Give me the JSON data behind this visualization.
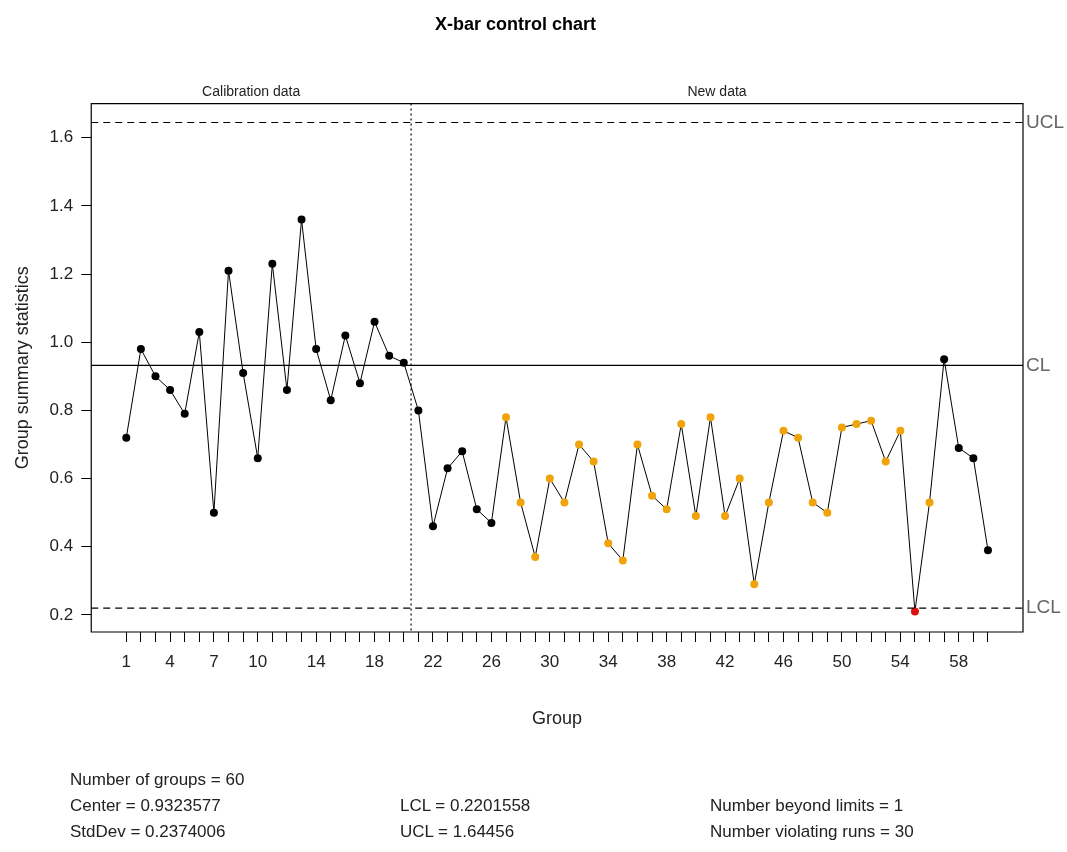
{
  "chart_data": {
    "type": "line",
    "title": "X-bar control chart",
    "xlabel": "Group",
    "ylabel": "Group summary statistics",
    "x": [
      1,
      2,
      3,
      4,
      5,
      6,
      7,
      8,
      9,
      10,
      11,
      12,
      13,
      14,
      15,
      16,
      17,
      18,
      19,
      20,
      21,
      22,
      23,
      24,
      25,
      26,
      27,
      28,
      29,
      30,
      31,
      32,
      33,
      34,
      35,
      36,
      37,
      38,
      39,
      40,
      41,
      42,
      43,
      44,
      45,
      46,
      47,
      48,
      49,
      50,
      51,
      52,
      53,
      54,
      55,
      56,
      57,
      58,
      59,
      60
    ],
    "series": [
      {
        "color": "#000000",
        "values": [
          0.72,
          0.98,
          0.9,
          0.86,
          0.79,
          1.03,
          0.5,
          1.21,
          0.91,
          0.66,
          1.23,
          0.86,
          1.36,
          0.98,
          0.83,
          1.02,
          0.88,
          1.06,
          0.96,
          0.94,
          0.8,
          0.46,
          0.63,
          0.68,
          0.51,
          0.47,
          0.78,
          0.53,
          0.37,
          0.6,
          0.53,
          0.7,
          0.65,
          0.41,
          0.36,
          0.7,
          0.55,
          0.51,
          0.76,
          0.49,
          0.78,
          0.49,
          0.6,
          0.29,
          0.53,
          0.74,
          0.72,
          0.53,
          0.5,
          0.75,
          0.76,
          0.77,
          0.65,
          0.74,
          0.21,
          0.53,
          0.95,
          0.69,
          0.66,
          0.39
        ],
        "colors": [
          "#000000",
          "#000000",
          "#000000",
          "#000000",
          "#000000",
          "#000000",
          "#000000",
          "#000000",
          "#000000",
          "#000000",
          "#000000",
          "#000000",
          "#000000",
          "#000000",
          "#000000",
          "#000000",
          "#000000",
          "#000000",
          "#000000",
          "#000000",
          "#000000",
          "#000000",
          "#000000",
          "#000000",
          "#000000",
          "#000000",
          "#f0a30a",
          "#f0a30a",
          "#f0a30a",
          "#f0a30a",
          "#f0a30a",
          "#f0a30a",
          "#f0a30a",
          "#f0a30a",
          "#f0a30a",
          "#f0a30a",
          "#f0a30a",
          "#f0a30a",
          "#f0a30a",
          "#f0a30a",
          "#f0a30a",
          "#f0a30a",
          "#f0a30a",
          "#f0a30a",
          "#f0a30a",
          "#f0a30a",
          "#f0a30a",
          "#f0a30a",
          "#f0a30a",
          "#f0a30a",
          "#f0a30a",
          "#f0a30a",
          "#f0a30a",
          "#f0a30a",
          "#e01010",
          "#f0a30a",
          "#000000",
          "#000000",
          "#000000",
          "#000000"
        ]
      }
    ],
    "xlim": [
      -1.4,
      62.4
    ],
    "xticks": [
      1,
      {
        "value": 2,
        "label": null
      },
      {
        "value": 3,
        "label": null
      },
      4,
      {
        "value": 5,
        "label": null
      },
      {
        "value": 6,
        "label": null
      },
      7,
      {
        "value": 8,
        "label": null
      },
      {
        "value": 9,
        "label": null
      },
      10,
      {
        "value": 11,
        "label": null
      },
      {
        "value": 12,
        "label": null
      },
      {
        "value": 13,
        "label": null
      },
      14,
      {
        "value": 15,
        "label": null
      },
      {
        "value": 16,
        "label": null
      },
      {
        "value": 17,
        "label": null
      },
      18,
      {
        "value": 19,
        "label": null
      },
      {
        "value": 20,
        "label": null
      },
      {
        "value": 21,
        "label": null
      },
      22,
      {
        "value": 23,
        "label": null
      },
      {
        "value": 24,
        "label": null
      },
      {
        "value": 25,
        "label": null
      },
      26,
      {
        "value": 27,
        "label": null
      },
      {
        "value": 28,
        "label": null
      },
      {
        "value": 29,
        "label": null
      },
      30,
      {
        "value": 31,
        "label": null
      },
      {
        "value": 32,
        "label": null
      },
      {
        "value": 33,
        "label": null
      },
      34,
      {
        "value": 35,
        "label": null
      },
      {
        "value": 36,
        "label": null
      },
      {
        "value": 37,
        "label": null
      },
      38,
      {
        "value": 39,
        "label": null
      },
      {
        "value": 40,
        "label": null
      },
      {
        "value": 41,
        "label": null
      },
      42,
      {
        "value": 43,
        "label": null
      },
      {
        "value": 44,
        "label": null
      },
      {
        "value": 45,
        "label": null
      },
      46,
      {
        "value": 47,
        "label": null
      },
      {
        "value": 48,
        "label": null
      },
      {
        "value": 49,
        "label": null
      },
      50,
      {
        "value": 51,
        "label": null
      },
      {
        "value": 52,
        "label": null
      },
      {
        "value": 53,
        "label": null
      },
      54,
      {
        "value": 55,
        "label": null
      },
      {
        "value": 56,
        "label": null
      },
      {
        "value": 57,
        "label": null
      },
      58,
      {
        "value": 59,
        "label": null
      },
      {
        "value": 60,
        "label": null
      }
    ],
    "ylim": [
      0.15,
      1.7
    ],
    "yticks": [
      0.2,
      0.4,
      0.6,
      0.8,
      {
        "value": 1,
        "label": "1.0"
      },
      1.2,
      1.4,
      1.6
    ],
    "ref_lines": [
      {
        "axis": "y",
        "value": 1.64456,
        "label": "UCL",
        "line_style": "dashed",
        "color": "#000000"
      },
      {
        "axis": "y",
        "value": 0.9323577,
        "label": "CL",
        "line_style": "solid",
        "color": "#000000"
      },
      {
        "axis": "y",
        "value": 0.2201558,
        "label": "LCL",
        "line_style": "dashed",
        "color": "#000000"
      },
      {
        "axis": "x",
        "value": 20.5,
        "label": null,
        "line_style": "dotted",
        "color": "#000000"
      }
    ],
    "annotations": [
      "Calibration data",
      "New data",
      "Number of groups = 60",
      "Center = 0.9323577",
      "StdDev = 0.2374006",
      "LCL = 0.2201558",
      "UCL = 1.64456",
      "Number beyond limits = 1",
      "Number violating runs = 30"
    ],
    "marker": "circle",
    "line_style": "solid",
    "grid": false,
    "legend": false
  }
}
